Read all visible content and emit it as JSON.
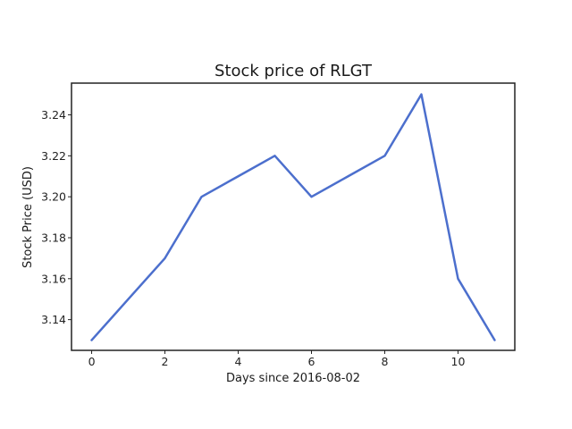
{
  "chart_data": {
    "type": "line",
    "title": "Stock price of RLGT",
    "xlabel": "Days since 2016-08-02",
    "ylabel": "Stock Price (USD)",
    "x": [
      0,
      1,
      2,
      3,
      4,
      5,
      6,
      7,
      8,
      9,
      10,
      11
    ],
    "series": [
      {
        "values": [
          3.13,
          3.15,
          3.17,
          3.2,
          3.21,
          3.22,
          3.2,
          3.21,
          3.22,
          3.25,
          3.16,
          3.13
        ],
        "color": "#4c6fcd"
      }
    ],
    "xlim": [
      -0.55,
      11.55
    ],
    "ylim": [
      3.125,
      3.2555
    ],
    "xticks": [
      0,
      2,
      4,
      6,
      8,
      10
    ],
    "xtick_labels": [
      "0",
      "2",
      "4",
      "6",
      "8",
      "10"
    ],
    "yticks": [
      3.14,
      3.16,
      3.18,
      3.2,
      3.22,
      3.24
    ],
    "ytick_labels": [
      "3.14",
      "3.16",
      "3.18",
      "3.20",
      "3.22",
      "3.24"
    ],
    "grid": false,
    "legend": false
  }
}
